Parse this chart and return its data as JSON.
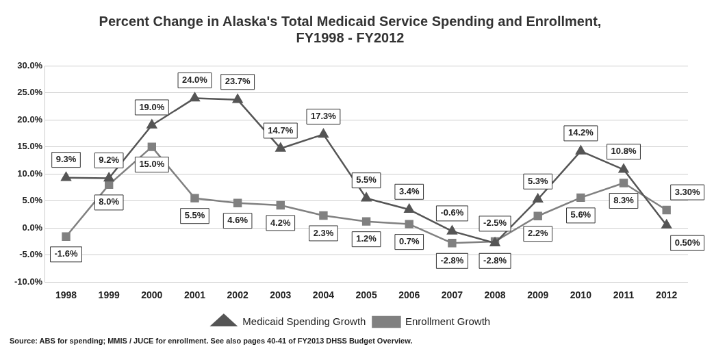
{
  "chart_data": {
    "type": "line",
    "title": "Percent Change in Alaska's Total Medicaid Service Spending and Enrollment,\nFY1998 - FY2012",
    "categories": [
      "1998",
      "1999",
      "2000",
      "2001",
      "2002",
      "2003",
      "2004",
      "2005",
      "2006",
      "2007",
      "2008",
      "2009",
      "2010",
      "2011",
      "2012"
    ],
    "series": [
      {
        "name": "Medicaid Spending Growth",
        "color": "#555555",
        "marker": "triangle",
        "values": [
          9.3,
          9.2,
          19.0,
          24.0,
          23.7,
          14.7,
          17.3,
          5.5,
          3.4,
          -0.6,
          -2.8,
          5.3,
          14.2,
          10.8,
          0.5
        ],
        "value_labels": [
          "9.3%",
          "9.2%",
          "19.0%",
          "24.0%",
          "23.7%",
          "14.7%",
          "17.3%",
          "5.5%",
          "3.4%",
          "-0.6%",
          "-2.8%",
          "5.3%",
          "14.2%",
          "10.8%",
          "0.50%"
        ]
      },
      {
        "name": "Enrollment Growth",
        "color": "#808080",
        "marker": "square",
        "values": [
          -1.6,
          8.0,
          15.0,
          5.5,
          4.6,
          4.2,
          2.3,
          1.2,
          0.7,
          -2.8,
          -2.5,
          2.2,
          5.6,
          8.3,
          3.3
        ],
        "value_labels": [
          "-1.6%",
          "8.0%",
          "15.0%",
          "5.5%",
          "4.6%",
          "4.2%",
          "2.3%",
          "1.2%",
          "0.7%",
          "-2.8%",
          "-2.5%",
          "2.2%",
          "5.6%",
          "8.3%",
          "3.30%"
        ]
      }
    ],
    "ylim": [
      -10,
      30
    ],
    "yticks": [
      {
        "value": -10,
        "label": "-10.0%"
      },
      {
        "value": -5,
        "label": "-5.0%"
      },
      {
        "value": 0,
        "label": "0.0%"
      },
      {
        "value": 5,
        "label": "5.0%"
      },
      {
        "value": 10,
        "label": "10.0%"
      },
      {
        "value": 15,
        "label": "15.0%"
      },
      {
        "value": 20,
        "label": "20.0%"
      },
      {
        "value": 25,
        "label": "25.0%"
      },
      {
        "value": 30,
        "label": "30.0%"
      }
    ],
    "grid": "y",
    "legend": "bottom",
    "annotations": [
      "Source: ABS for spending; MMIS / JUCE for enrollment.  See also pages 40-41 of FY2013 DHSS Budget Overview."
    ]
  }
}
